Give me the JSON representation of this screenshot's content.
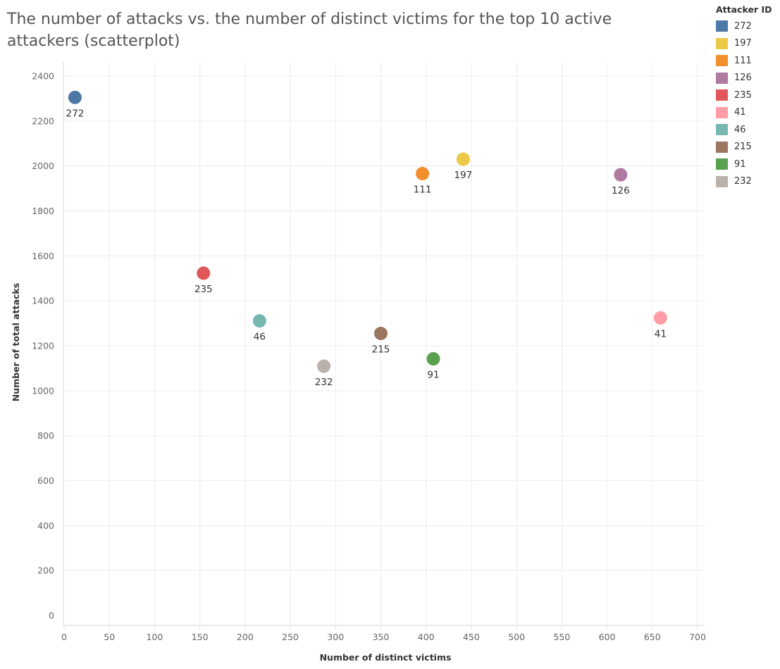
{
  "title": "The number of attacks vs. the number of distinct victims for the top 10 active attackers (scatterplot)",
  "chart_data": {
    "type": "scatter",
    "title": "The number of attacks vs. the number of distinct victims for the top 10 active attackers (scatterplot)",
    "xlabel": "Number of distinct victims",
    "ylabel": "Number of total attacks",
    "xlim": [
      0,
      700
    ],
    "ylim": [
      0,
      2400
    ],
    "x_ticks": [
      0,
      50,
      100,
      150,
      200,
      250,
      300,
      350,
      400,
      450,
      500,
      550,
      600,
      650,
      700
    ],
    "y_ticks": [
      0,
      200,
      400,
      600,
      800,
      1000,
      1200,
      1400,
      1600,
      1800,
      2000,
      2200,
      2400
    ],
    "grid": true,
    "legend_title": "Attacker ID",
    "legend_position": "top-right",
    "series": [
      {
        "name": "272",
        "color": "#4e79a7",
        "x": 12,
        "y": 2305
      },
      {
        "name": "197",
        "color": "#edc948",
        "x": 441,
        "y": 2030
      },
      {
        "name": "111",
        "color": "#f28e2b",
        "x": 396,
        "y": 1966
      },
      {
        "name": "126",
        "color": "#b07aa1",
        "x": 615,
        "y": 1961
      },
      {
        "name": "235",
        "color": "#e15759",
        "x": 154,
        "y": 1523
      },
      {
        "name": "41",
        "color": "#ff9da7",
        "x": 659,
        "y": 1324
      },
      {
        "name": "46",
        "color": "#76b7b2",
        "x": 216,
        "y": 1311
      },
      {
        "name": "215",
        "color": "#9c755f",
        "x": 350,
        "y": 1255
      },
      {
        "name": "91",
        "color": "#59a14f",
        "x": 408,
        "y": 1142
      },
      {
        "name": "232",
        "color": "#bab0ac",
        "x": 287,
        "y": 1109
      }
    ]
  }
}
